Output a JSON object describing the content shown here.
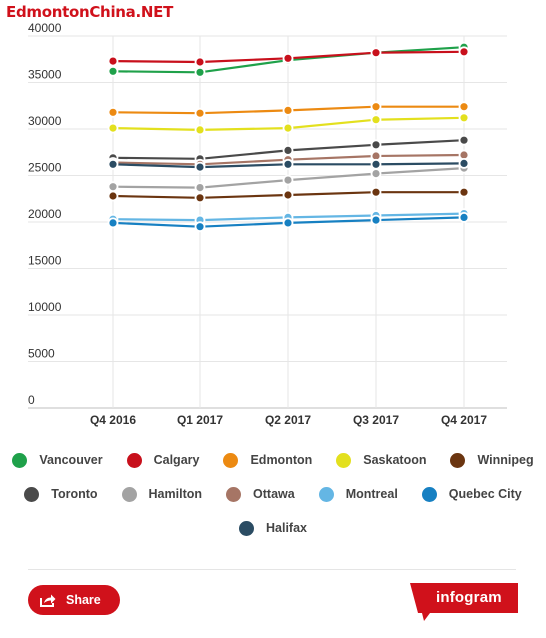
{
  "watermark": "EdmontonChina.NET",
  "share_label": "Share",
  "brand_label": "infogram",
  "colors": {
    "accent": "#d0111b",
    "grid": "#e6e6e6",
    "axis": "#bfbfbf"
  },
  "chart_data": {
    "type": "line",
    "title": "",
    "xlabel": "",
    "ylabel": "",
    "categories": [
      "Q4 2016",
      "Q1 2017",
      "Q2 2017",
      "Q3 2017",
      "Q4 2017"
    ],
    "ylim": [
      0,
      40000
    ],
    "yticks": [
      0,
      5000,
      10000,
      15000,
      20000,
      25000,
      30000,
      35000,
      40000
    ],
    "grid": true,
    "legend_position": "bottom",
    "series": [
      {
        "name": "Vancouver",
        "color": "#1fa14a",
        "values": [
          36200,
          36100,
          37400,
          38200,
          38800
        ]
      },
      {
        "name": "Calgary",
        "color": "#c8101c",
        "values": [
          37300,
          37200,
          37600,
          38200,
          38300
        ]
      },
      {
        "name": "Edmonton",
        "color": "#ec8a12",
        "values": [
          31800,
          31700,
          32000,
          32400,
          32400
        ]
      },
      {
        "name": "Saskatoon",
        "color": "#e3e01e",
        "values": [
          30100,
          29900,
          30100,
          31000,
          31200
        ]
      },
      {
        "name": "Winnipeg",
        "color": "#6b3510",
        "values": [
          22800,
          22600,
          22900,
          23200,
          23200
        ]
      },
      {
        "name": "Toronto",
        "color": "#4a4a4a",
        "values": [
          26900,
          26800,
          27700,
          28300,
          28800
        ]
      },
      {
        "name": "Hamilton",
        "color": "#a3a3a3",
        "values": [
          23800,
          23700,
          24500,
          25200,
          25800
        ]
      },
      {
        "name": "Ottawa",
        "color": "#a67565",
        "values": [
          26400,
          26200,
          26700,
          27100,
          27200
        ]
      },
      {
        "name": "Montreal",
        "color": "#64b6e4",
        "values": [
          20300,
          20200,
          20500,
          20700,
          20900
        ]
      },
      {
        "name": "Quebec City",
        "color": "#1780c2",
        "values": [
          19900,
          19500,
          19900,
          20200,
          20500
        ]
      },
      {
        "name": "Halifax",
        "color": "#2b4c63",
        "values": [
          26200,
          25900,
          26200,
          26200,
          26300
        ]
      }
    ]
  }
}
